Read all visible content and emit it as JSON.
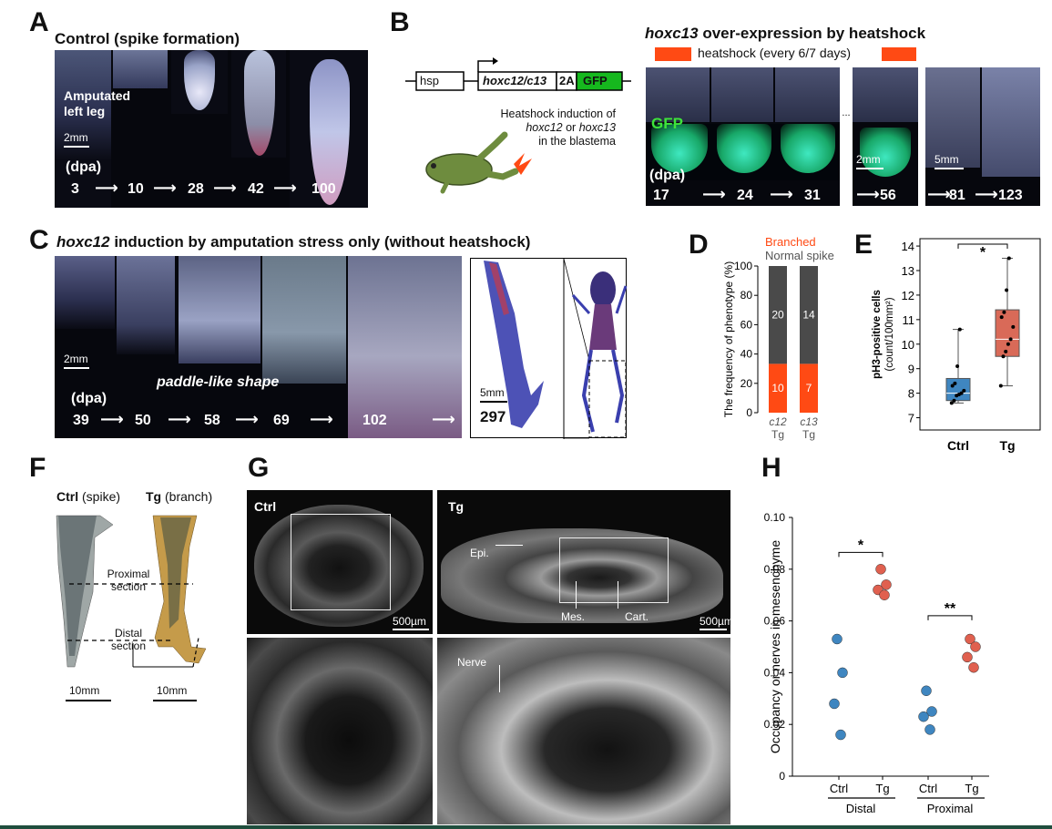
{
  "panelA": {
    "label": "A",
    "title": "Control (spike formation)",
    "note_line1": "Amputated",
    "note_line2": "left leg",
    "scale": "2mm",
    "dpa": "(dpa)",
    "timepoints": [
      "3",
      "10",
      "28",
      "42",
      "100"
    ]
  },
  "panelB": {
    "label": "B",
    "title_gene": "hoxc13",
    "title_rest": " over-expression by heatshock",
    "legend": "heatshock (every 6/7 days)",
    "construct": {
      "hsp": "hsp",
      "gene": "hoxc12/c13",
      "linker": "2A",
      "reporter": "GFP"
    },
    "induction_line1": "Heatshock induction of",
    "induction_gene1": "hoxc12",
    "induction_or": " or ",
    "induction_gene2": "hoxc13",
    "induction_line3": "in the blastema",
    "gfp": "GFP",
    "ellipsis": "...",
    "scale1": "2mm",
    "scale2": "5mm",
    "dpa": "(dpa)",
    "timepoints": [
      "17",
      "24",
      "31",
      "56",
      "81",
      "123"
    ],
    "colors": {
      "heatshock": "#ff4a14",
      "gfp_box": "#16b81e"
    }
  },
  "panelC": {
    "label": "C",
    "title_gene": "hoxc12",
    "title_rest": " induction by amputation stress only (without heatshock)",
    "scale": "2mm",
    "shape": "paddle-like shape",
    "dpa": "(dpa)",
    "timepoints": [
      "39",
      "50",
      "58",
      "69",
      "102"
    ],
    "stain_scale": "5mm",
    "stain_dpa": "297"
  },
  "panelD": {
    "label": "D",
    "legend_branched": "Branched",
    "legend_normal": "Normal spike",
    "ylabel": "The frequency of phenotype (%)"
  },
  "panelE": {
    "label": "E",
    "ylabel_line1": "pH3-positive cells",
    "ylabel_line2": "(count/100mm²)",
    "sig": "*"
  },
  "panelF": {
    "label": "F",
    "ctrl": "Ctrl",
    "ctrl_note": " (spike)",
    "tg": "Tg",
    "tg_note": " (branch)",
    "proximal_line1": "Proximal",
    "proximal_line2": "section",
    "distal_line1": "Distal",
    "distal_line2": "section",
    "scale_left": "10mm",
    "scale_right": "10mm"
  },
  "panelG": {
    "label": "G",
    "ctrl": "Ctrl",
    "tg": "Tg",
    "epi": "Epi.",
    "mes": "Mes.",
    "cart": "Cart.",
    "nerve": "Nerve",
    "scale_left": "500µm",
    "scale_right": "500µm"
  },
  "panelH": {
    "label": "H",
    "ylabel": "Occupancy or nerves in mesenchyme",
    "group_distal": "Distal",
    "group_proximal": "Proximal",
    "sig_distal": "*",
    "sig_proximal": "**"
  },
  "chart_data": [
    {
      "panel": "D",
      "type": "bar",
      "stacked": true,
      "categories": [
        "c12 Tg",
        "c13 Tg"
      ],
      "category_lines": [
        [
          "c12",
          "Tg"
        ],
        [
          "c13",
          "Tg"
        ]
      ],
      "series": [
        {
          "name": "Branched",
          "values": [
            33.3,
            33.3
          ],
          "counts": [
            "10",
            "7"
          ],
          "color": "#ff4a14"
        },
        {
          "name": "Normal spike",
          "values": [
            66.7,
            66.7
          ],
          "counts": [
            "20",
            "14"
          ],
          "color": "#4a4a4a"
        }
      ],
      "ylim": [
        0,
        100
      ],
      "yticks": [
        0,
        20,
        40,
        60,
        80,
        100
      ]
    },
    {
      "panel": "E",
      "type": "box",
      "categories": [
        "Ctrl",
        "Tg"
      ],
      "ylim": [
        6.5,
        14.3
      ],
      "yticks": [
        7,
        8,
        9,
        10,
        11,
        12,
        13,
        14
      ],
      "boxes": [
        {
          "name": "Ctrl",
          "whisker_low": 7.6,
          "q1": 7.7,
          "median": 8.0,
          "q3": 8.6,
          "whisker_high": 10.6,
          "color": "#3f86c0",
          "points": [
            7.6,
            7.7,
            7.9,
            7.95,
            8.0,
            8.1,
            8.3,
            8.4,
            9.1,
            10.6
          ]
        },
        {
          "name": "Tg",
          "whisker_low": 8.3,
          "q1": 9.5,
          "median": 10.2,
          "q3": 11.4,
          "whisker_high": 13.5,
          "color": "#d96a58",
          "points": [
            8.3,
            9.5,
            9.7,
            10.0,
            10.2,
            10.7,
            11.1,
            11.3,
            12.2,
            13.5
          ]
        }
      ]
    },
    {
      "panel": "H",
      "type": "scatter",
      "categories": [
        "Ctrl",
        "Tg",
        "Ctrl",
        "Tg"
      ],
      "groups": [
        "Distal",
        "Proximal"
      ],
      "ylim": [
        0,
        0.1
      ],
      "yticks": [
        "0",
        "0.02",
        "0.04",
        "0.06",
        "0.08",
        "0.10"
      ],
      "series": [
        {
          "name": "Ctrl",
          "group": "Distal",
          "color": "#3f86c0",
          "values": [
            0.053,
            0.04,
            0.028,
            0.016
          ]
        },
        {
          "name": "Tg",
          "group": "Distal",
          "color": "#e0604f",
          "values": [
            0.08,
            0.074,
            0.072,
            0.07
          ]
        },
        {
          "name": "Ctrl",
          "group": "Proximal",
          "color": "#3f86c0",
          "values": [
            0.033,
            0.025,
            0.023,
            0.018
          ]
        },
        {
          "name": "Tg",
          "group": "Proximal",
          "color": "#e0604f",
          "values": [
            0.053,
            0.05,
            0.046,
            0.042
          ]
        }
      ]
    }
  ]
}
